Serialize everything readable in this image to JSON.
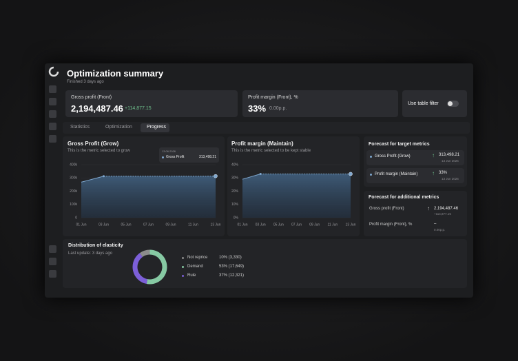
{
  "header": {
    "title": "Optimization summary",
    "subtitle": "Finished 3 days ago"
  },
  "kpis": [
    {
      "label": "Gross profit (Front)",
      "value": "2,194,487.46",
      "delta": "+114,877.15"
    },
    {
      "label": "Profit margin (Front), %",
      "value": "33%",
      "delta": "0.00p.p."
    }
  ],
  "filter": {
    "label": "Use table filter"
  },
  "tabs": [
    "Statistics",
    "Optimization",
    "Progress"
  ],
  "chart_data": [
    {
      "type": "area",
      "title": "Gross Profit (Grow)",
      "subtitle": "This is the metric selected to grow",
      "categories": [
        "01 Jun",
        "03 Jun",
        "05 Jun",
        "07 Jun",
        "09 Jun",
        "11 Jun",
        "13 Jun"
      ],
      "values": [
        268000,
        313000,
        313000,
        313000,
        313000,
        313000,
        313498.21
      ],
      "forecast_from": 1,
      "color": "#7fa8d0",
      "grid": true,
      "ylim": [
        0,
        400000
      ],
      "yticks": [
        {
          "value": 0,
          "label": "0"
        },
        {
          "value": 100000,
          "label": "100k"
        },
        {
          "value": 200000,
          "label": "200k"
        },
        {
          "value": 300000,
          "label": "300k"
        },
        {
          "value": 400000,
          "label": "400k"
        }
      ],
      "tooltip": {
        "date": "13.06.2026",
        "label": "Gross Profit",
        "value": "313,498.21"
      }
    },
    {
      "type": "area",
      "title": "Profit margin (Maintain)",
      "subtitle": "This is the metric selected to be kept stable",
      "categories": [
        "01 Jun",
        "03 Jun",
        "05 Jun",
        "07 Jun",
        "09 Jun",
        "11 Jun",
        "13 Jun"
      ],
      "values": [
        29,
        33,
        33,
        33,
        33,
        33,
        33
      ],
      "forecast_from": 1,
      "color": "#7fa8d0",
      "grid": true,
      "ylim": [
        0,
        40
      ],
      "yticks": [
        {
          "value": 0,
          "label": "0%"
        },
        {
          "value": 10,
          "label": "10%"
        },
        {
          "value": 20,
          "label": "20%"
        },
        {
          "value": 30,
          "label": "30%"
        },
        {
          "value": 40,
          "label": "40%"
        }
      ]
    },
    {
      "type": "donut",
      "title": "Distribution of elasticity",
      "subtitle": "Last update: 3 days ago",
      "categories": [
        "Not reprice",
        "Demand",
        "Rule"
      ],
      "values": [
        10,
        53,
        37
      ],
      "value_labels": [
        "10% (3,330)",
        "53% (17,649)",
        "37% (12,321)"
      ],
      "colors": [
        "#8c8c8c",
        "#86c9a3",
        "#7c5fd8"
      ]
    }
  ],
  "forecast_target": {
    "title": "Forecast for target metrics",
    "items": [
      {
        "label": "Gross Profit (Grow)",
        "value": "313,498.21",
        "date": "13 Jun 2026"
      },
      {
        "label": "Profit margin (Maintain)",
        "value": "33%",
        "date": "13 Jun 2026"
      }
    ]
  },
  "forecast_additional": {
    "title": "Forecast for additional metrics",
    "items": [
      {
        "label": "Gross profit (Front)",
        "value": "2,194,487.46",
        "delta": "+114,877.15"
      },
      {
        "label": "Profit margin (Front), %",
        "value": "–",
        "delta": "0.00p.p."
      }
    ]
  }
}
